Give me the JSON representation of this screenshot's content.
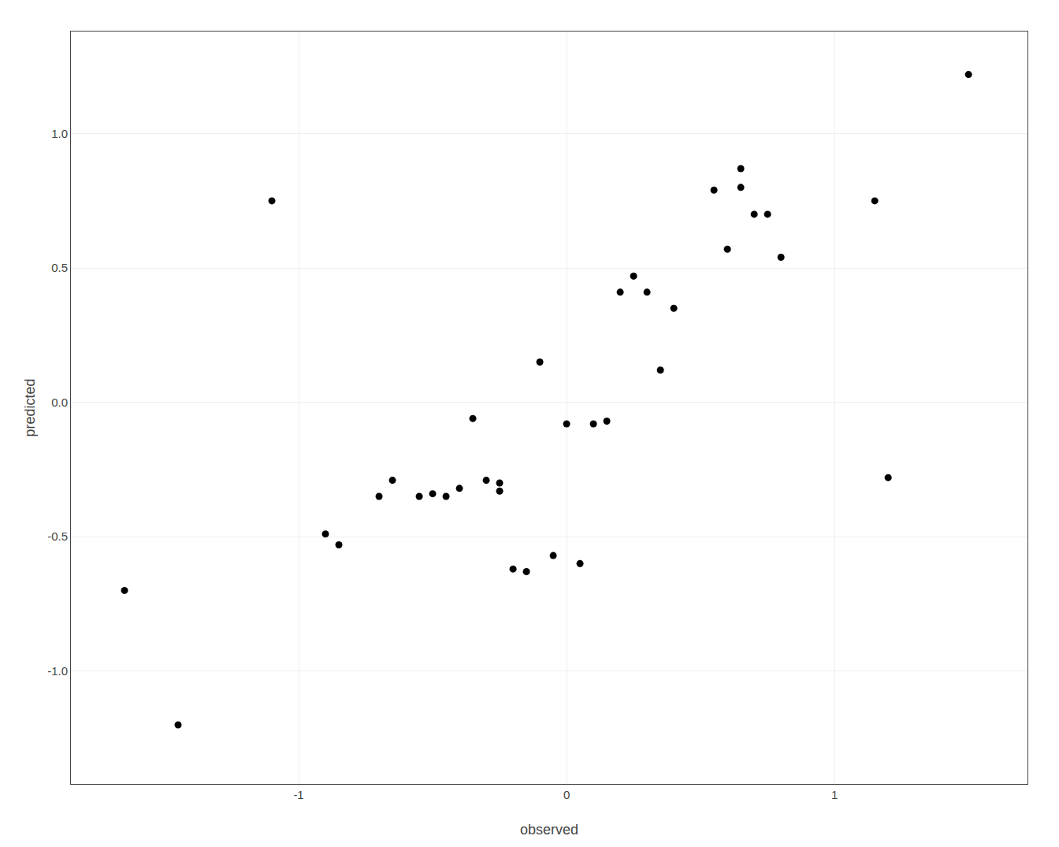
{
  "chart_data": {
    "type": "scatter",
    "x": [
      -1.65,
      -1.45,
      -1.1,
      -0.9,
      -0.85,
      -0.7,
      -0.65,
      -0.55,
      -0.5,
      -0.45,
      -0.4,
      -0.35,
      -0.3,
      -0.25,
      -0.25,
      -0.2,
      -0.15,
      -0.1,
      -0.05,
      0.0,
      0.05,
      0.1,
      0.15,
      0.2,
      0.25,
      0.3,
      0.35,
      0.4,
      0.55,
      0.6,
      0.65,
      0.65,
      0.7,
      0.75,
      0.8,
      1.15,
      1.2,
      1.5
    ],
    "values": [
      -0.7,
      -1.2,
      0.75,
      -0.49,
      -0.53,
      -0.35,
      -0.29,
      -0.35,
      -0.34,
      -0.35,
      -0.32,
      -0.06,
      -0.29,
      -0.3,
      -0.33,
      -0.62,
      -0.63,
      0.15,
      -0.57,
      -0.08,
      -0.6,
      -0.08,
      -0.07,
      0.41,
      0.47,
      0.41,
      0.12,
      0.35,
      0.79,
      0.57,
      0.8,
      0.87,
      0.7,
      0.7,
      0.54,
      0.75,
      -0.28,
      1.22
    ],
    "xlabel": "observed",
    "ylabel": "predicted",
    "xlim": [
      -1.85,
      1.72
    ],
    "ylim": [
      -1.42,
      1.38
    ],
    "xticks": [
      -1,
      0,
      1
    ],
    "yticks": [
      {
        "value": -1,
        "label": "-1.0"
      },
      -0.5,
      {
        "value": 0,
        "label": "0.0"
      },
      0.5,
      {
        "value": 1,
        "label": "1.0"
      }
    ],
    "color": "#000000",
    "grid": true
  }
}
